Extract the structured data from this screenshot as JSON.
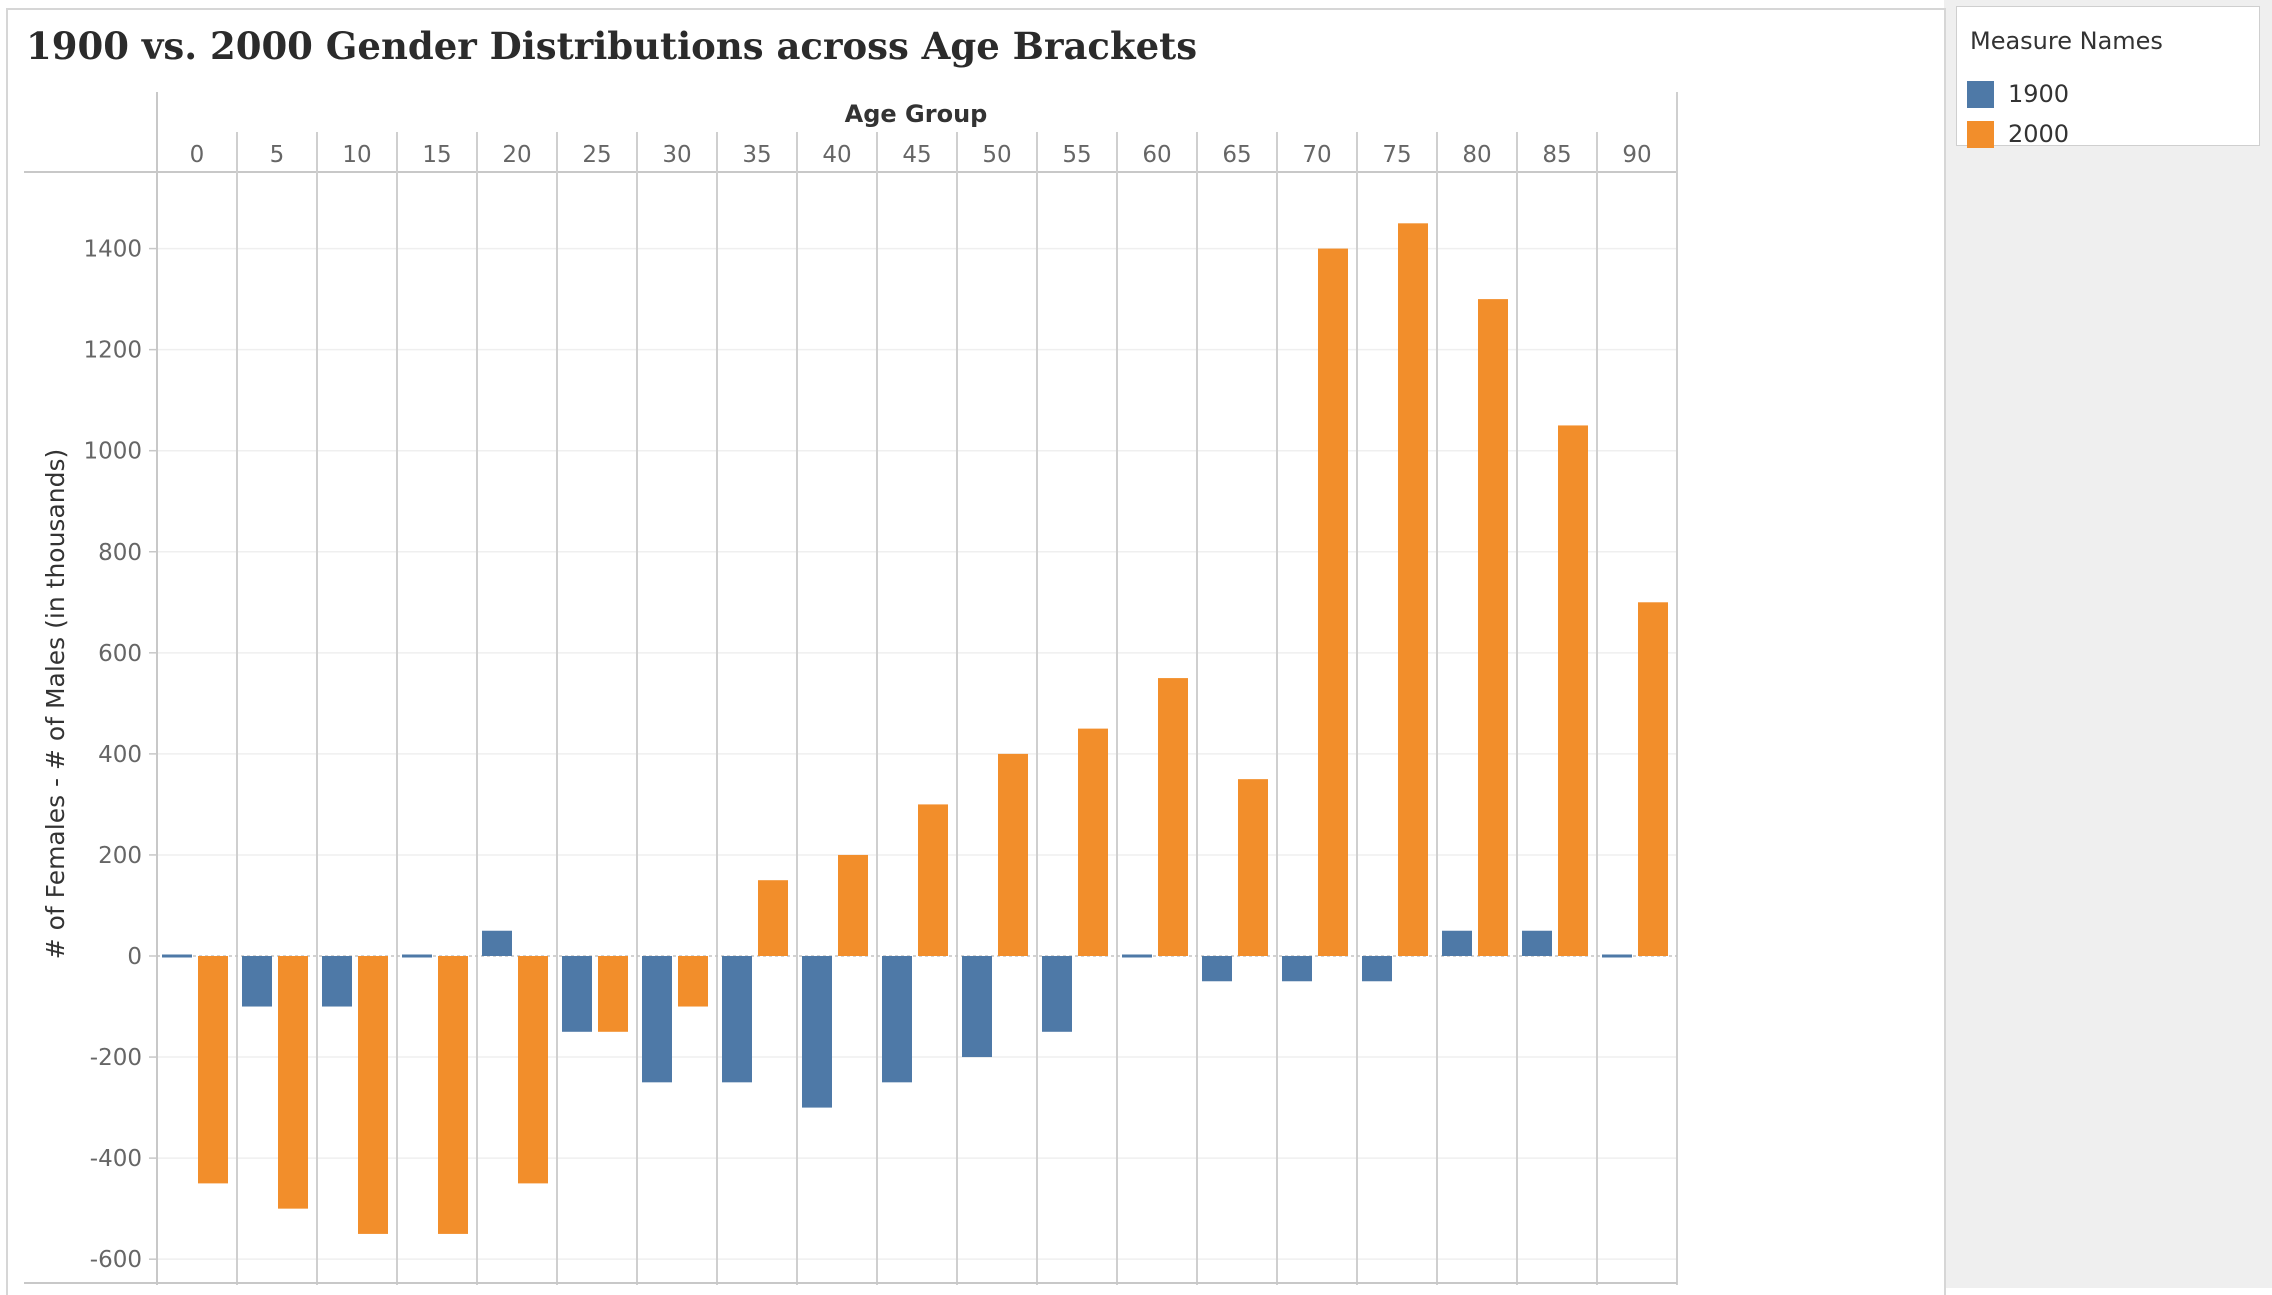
{
  "chart_data": {
    "type": "bar",
    "title": "1900 vs. 2000 Gender Distributions across Age Brackets",
    "xlabel": "Age Group",
    "ylabel": "# of Females - # of Males (in thousands)",
    "categories": [
      "0",
      "5",
      "10",
      "15",
      "20",
      "25",
      "30",
      "35",
      "40",
      "45",
      "50",
      "55",
      "60",
      "65",
      "70",
      "75",
      "80",
      "85",
      "90"
    ],
    "series": [
      {
        "name": "1900",
        "color": "#4e79a7",
        "values": [
          -5,
          -100,
          -100,
          -5,
          50,
          -150,
          -250,
          -250,
          -300,
          -250,
          -200,
          -150,
          -5,
          -50,
          -50,
          -50,
          50,
          50,
          -5
        ]
      },
      {
        "name": "2000",
        "color": "#f28e2b",
        "values": [
          -450,
          -500,
          -550,
          -550,
          -450,
          -150,
          -100,
          150,
          200,
          300,
          400,
          450,
          550,
          350,
          1400,
          1450,
          1300,
          1050,
          700
        ]
      }
    ],
    "yticks": [
      -600,
      -400,
      -200,
      0,
      200,
      400,
      600,
      800,
      1000,
      1200,
      1400
    ],
    "ylim": [
      -655,
      1475
    ],
    "grid": true,
    "legend_position": "top-right",
    "legend_title": "Measure Names"
  }
}
